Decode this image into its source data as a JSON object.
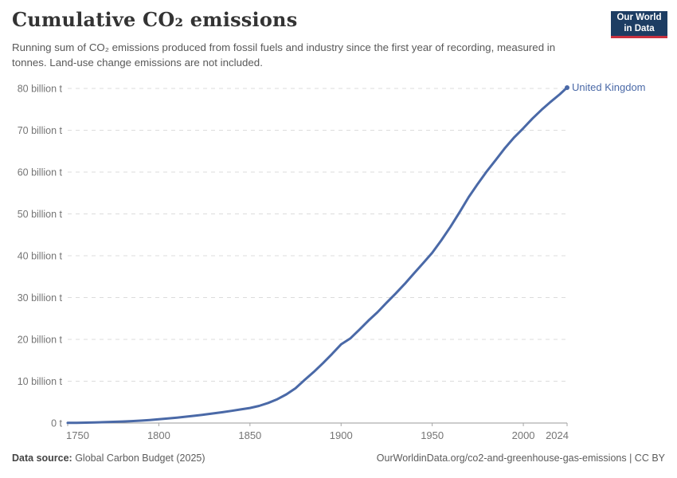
{
  "header": {
    "title": "Cumulative CO₂ emissions",
    "subtitle": "Running sum of CO₂ emissions produced from fossil fuels and industry since the first year of recording, measured in tonnes. Land-use change emissions are not included.",
    "logo": {
      "line1": "Our World",
      "line2": "in Data"
    }
  },
  "chart_data": {
    "type": "line",
    "title": "Cumulative CO₂ emissions",
    "unit": "billion tonnes CO₂",
    "xlabel": "",
    "ylabel": "",
    "xlim": [
      1750,
      2024
    ],
    "ylim": [
      0,
      80
    ],
    "grid": "horizontal dashed",
    "legend_position": "end-of-line label",
    "x": [
      1750,
      1755,
      1760,
      1765,
      1770,
      1775,
      1780,
      1785,
      1790,
      1795,
      1800,
      1805,
      1810,
      1815,
      1820,
      1825,
      1830,
      1835,
      1840,
      1845,
      1850,
      1855,
      1860,
      1865,
      1870,
      1875,
      1880,
      1885,
      1890,
      1895,
      1900,
      1905,
      1910,
      1915,
      1920,
      1925,
      1930,
      1935,
      1940,
      1945,
      1950,
      1955,
      1960,
      1965,
      1970,
      1975,
      1980,
      1985,
      1990,
      1995,
      2000,
      2005,
      2010,
      2015,
      2020,
      2024
    ],
    "series": [
      {
        "name": "United Kingdom",
        "color": "#4a69a7",
        "values": [
          0.03,
          0.06,
          0.1,
          0.15,
          0.21,
          0.28,
          0.36,
          0.46,
          0.58,
          0.73,
          0.92,
          1.1,
          1.3,
          1.52,
          1.76,
          2.02,
          2.3,
          2.6,
          2.92,
          3.25,
          3.6,
          4.1,
          4.8,
          5.7,
          6.85,
          8.3,
          10.3,
          12.2,
          14.3,
          16.5,
          18.8,
          20.2,
          22.3,
          24.5,
          26.5,
          28.8,
          31.0,
          33.3,
          35.8,
          38.2,
          40.7,
          43.7,
          46.9,
          50.4,
          54.0,
          57.2,
          60.2,
          63.0,
          65.8,
          68.3,
          70.5,
          72.8,
          74.9,
          76.8,
          78.6,
          80.2
        ]
      }
    ],
    "x_ticks": [
      {
        "value": 1750,
        "label": "1750"
      },
      {
        "value": 1800,
        "label": "1800"
      },
      {
        "value": 1850,
        "label": "1850"
      },
      {
        "value": 1900,
        "label": "1900"
      },
      {
        "value": 1950,
        "label": "1950"
      },
      {
        "value": 2000,
        "label": "2000"
      },
      {
        "value": 2024,
        "label": "2024"
      }
    ],
    "y_ticks": [
      {
        "value": 0,
        "label": "0 t"
      },
      {
        "value": 10,
        "label": "10 billion t"
      },
      {
        "value": 20,
        "label": "20 billion t"
      },
      {
        "value": 30,
        "label": "30 billion t"
      },
      {
        "value": 40,
        "label": "40 billion t"
      },
      {
        "value": 50,
        "label": "50 billion t"
      },
      {
        "value": 60,
        "label": "60 billion t"
      },
      {
        "value": 70,
        "label": "70 billion t"
      },
      {
        "value": 80,
        "label": "80 billion t"
      }
    ]
  },
  "footer": {
    "source_label": "Data source:",
    "source": " Global Carbon Budget (2025)",
    "link": "OurWorldinData.org/co2-and-greenhouse-gas-emissions | CC BY"
  },
  "colors": {
    "line": "#4a69a7",
    "gridline": "#dcdcdc",
    "axis": "#999999",
    "tick": "#a6a6a6",
    "tick_label": "#757575",
    "logo_bg": "#1d3d63",
    "logo_stripe": "#c9313f"
  }
}
